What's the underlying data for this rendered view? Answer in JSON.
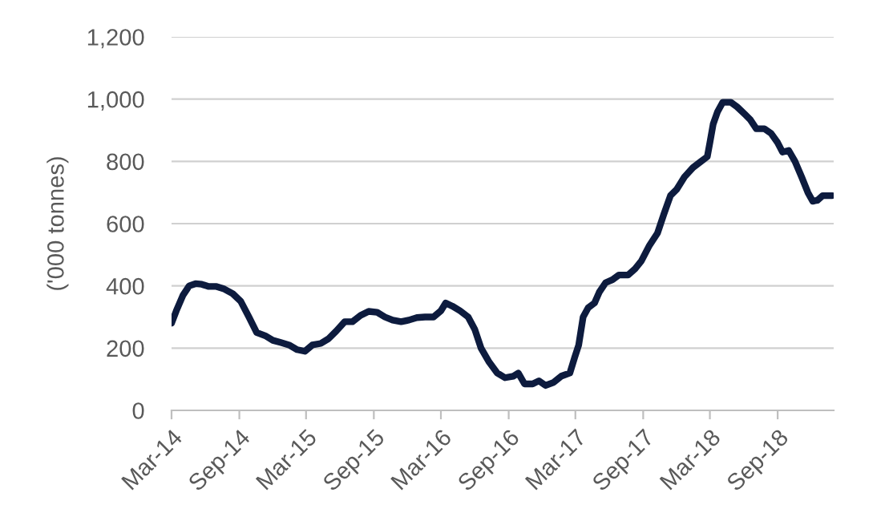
{
  "chart_data": {
    "type": "line",
    "ylabel": "('000 tonnes)",
    "x": [
      "2014-03-01",
      "2014-03-14",
      "2014-04-01",
      "2014-04-18",
      "2014-05-05",
      "2014-05-22",
      "2014-06-10",
      "2014-07-01",
      "2014-07-22",
      "2014-08-14",
      "2014-09-05",
      "2014-09-27",
      "2014-10-18",
      "2014-11-10",
      "2014-12-01",
      "2014-12-22",
      "2015-01-14",
      "2015-02-05",
      "2015-02-26",
      "2015-03-18",
      "2015-04-10",
      "2015-05-01",
      "2015-05-22",
      "2015-06-14",
      "2015-07-05",
      "2015-07-27",
      "2015-08-18",
      "2015-09-10",
      "2015-10-01",
      "2015-10-22",
      "2015-11-14",
      "2015-12-05",
      "2015-12-27",
      "2016-01-18",
      "2016-02-10",
      "2016-03-01",
      "2016-03-14",
      "2016-04-01",
      "2016-04-22",
      "2016-05-14",
      "2016-06-01",
      "2016-06-18",
      "2016-07-10",
      "2016-08-01",
      "2016-08-22",
      "2016-09-14",
      "2016-09-27",
      "2016-10-14",
      "2016-11-05",
      "2016-11-22",
      "2016-12-10",
      "2017-01-01",
      "2017-01-22",
      "2017-02-14",
      "2017-02-27",
      "2017-03-10",
      "2017-03-22",
      "2017-04-05",
      "2017-04-22",
      "2017-05-05",
      "2017-05-22",
      "2017-06-10",
      "2017-06-27",
      "2017-07-22",
      "2017-08-10",
      "2017-08-27",
      "2017-09-18",
      "2017-10-10",
      "2017-10-27",
      "2017-11-14",
      "2017-12-01",
      "2017-12-22",
      "2018-01-14",
      "2018-02-05",
      "2018-02-22",
      "2018-03-01",
      "2018-03-10",
      "2018-03-22",
      "2018-04-05",
      "2018-04-27",
      "2018-05-14",
      "2018-06-05",
      "2018-06-18",
      "2018-07-05",
      "2018-07-27",
      "2018-08-14",
      "2018-09-01",
      "2018-09-14",
      "2018-10-01",
      "2018-10-18",
      "2018-11-05",
      "2018-11-22",
      "2018-12-05",
      "2018-12-18",
      "2019-01-01",
      "2019-01-27"
    ],
    "series": [
      {
        "color": "#0d1b3e",
        "values": [
          280,
          320,
          370,
          400,
          407,
          405,
          398,
          398,
          390,
          375,
          350,
          300,
          250,
          240,
          225,
          218,
          210,
          195,
          190,
          210,
          215,
          230,
          255,
          285,
          285,
          305,
          318,
          315,
          300,
          290,
          285,
          290,
          298,
          300,
          300,
          320,
          345,
          335,
          320,
          300,
          260,
          200,
          155,
          120,
          105,
          110,
          120,
          85,
          85,
          95,
          80,
          90,
          110,
          120,
          170,
          210,
          300,
          330,
          345,
          380,
          410,
          420,
          435,
          435,
          455,
          480,
          530,
          570,
          630,
          690,
          710,
          750,
          780,
          800,
          815,
          860,
          920,
          960,
          990,
          990,
          975,
          950,
          935,
          905,
          905,
          890,
          860,
          830,
          835,
          800,
          750,
          700,
          672,
          675,
          690,
          690
        ]
      }
    ],
    "xlim": [
      "2014-03-01",
      "2019-01-31"
    ],
    "xticks": [
      {
        "value": "2014-03-01",
        "label": "Mar-14"
      },
      {
        "value": "2014-09-01",
        "label": "Sep-14"
      },
      {
        "value": "2015-03-01",
        "label": "Mar-15"
      },
      {
        "value": "2015-09-01",
        "label": "Sep-15"
      },
      {
        "value": "2016-03-01",
        "label": "Mar-16"
      },
      {
        "value": "2016-09-01",
        "label": "Sep-16"
      },
      {
        "value": "2017-03-01",
        "label": "Mar-17"
      },
      {
        "value": "2017-09-01",
        "label": "Sep-17"
      },
      {
        "value": "2018-03-01",
        "label": "Mar-18"
      },
      {
        "value": "2018-09-01",
        "label": "Sep-18"
      }
    ],
    "ylim": [
      0,
      1200
    ],
    "yticks": [
      {
        "value": 0,
        "label": "0"
      },
      {
        "value": 200,
        "label": "200"
      },
      {
        "value": 400,
        "label": "400"
      },
      {
        "value": 600,
        "label": "600"
      },
      {
        "value": 800,
        "label": "800"
      },
      {
        "value": 1000,
        "label": "1,000"
      },
      {
        "value": 1200,
        "label": "1,200"
      }
    ],
    "grid": "y",
    "legend": false,
    "marker": "none",
    "line_style": "solid"
  }
}
